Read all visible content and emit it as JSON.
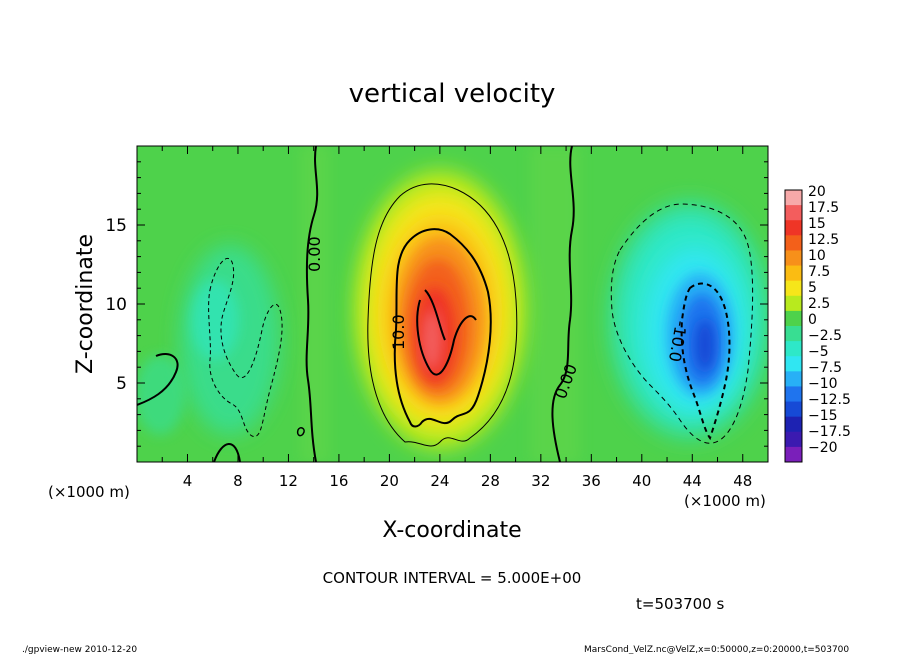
{
  "chart_data": {
    "type": "heatmap",
    "title": "vertical velocity",
    "xlabel": "X-coordinate",
    "ylabel": "Z-coordinate",
    "x_unit_left": "(×1000 m)",
    "x_unit_right": "(×1000 m)",
    "xlim": [
      0,
      50
    ],
    "ylim": [
      0,
      20
    ],
    "x_ticks": [
      4,
      8,
      12,
      16,
      20,
      24,
      28,
      32,
      36,
      40,
      44,
      48
    ],
    "y_ticks": [
      5,
      10,
      15
    ],
    "colorbar_labels": [
      "20",
      "17.5",
      "15",
      "12.5",
      "10",
      "7.5",
      "5",
      "2.5",
      "0",
      "−2.5",
      "−5",
      "−7.5",
      "−10",
      "−12.5",
      "−15",
      "−17.5",
      "−20"
    ],
    "colorbar_colors": [
      "#f7a9a9",
      "#f35d5d",
      "#ef3526",
      "#f3601a",
      "#f7901a",
      "#fbbc12",
      "#f6e61a",
      "#b8ea1e",
      "#4ed24b",
      "#38de92",
      "#2ee8c8",
      "#30e6f2",
      "#28b0f6",
      "#1f74ee",
      "#164ad6",
      "#1d22b2",
      "#3b1ab0",
      "#7a1fba"
    ],
    "contour_labels": [
      "0.00",
      "10.0",
      "0.00",
      "-10.0"
    ],
    "features": {
      "updraft": {
        "x": 23.5,
        "z": 8.5,
        "max": 17.5
      },
      "downdraft": {
        "x": 45,
        "z": 8.0,
        "min": -12.5
      }
    },
    "contour_interval_text": "CONTOUR INTERVAL = 5.000E+00",
    "time_text": "t=503700  s"
  },
  "footer": {
    "left": "./gpview-new   2010-12-20",
    "right": "MarsCond_VelZ.nc@VelZ,x=0:50000,z=0:20000,t=503700"
  }
}
